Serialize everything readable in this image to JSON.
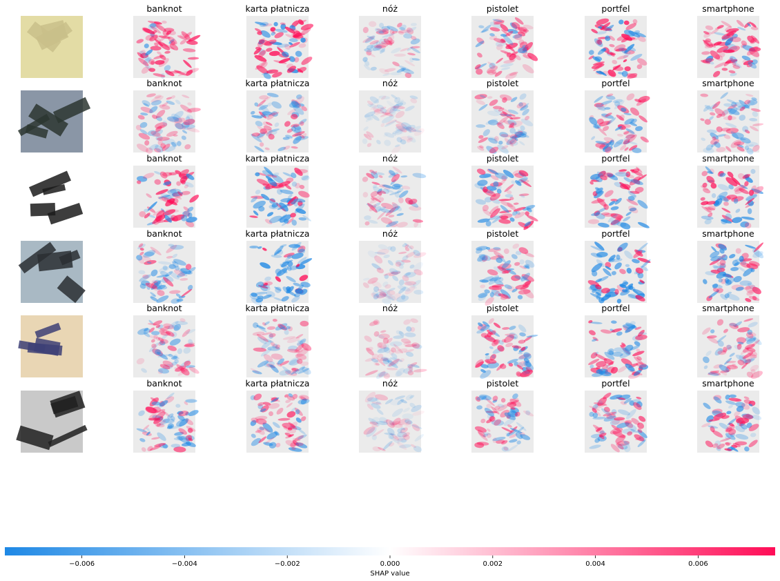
{
  "chart_data": {
    "type": "heatmap",
    "title": "",
    "rows": [
      {
        "input": "phone-back",
        "colors": {
          "base": "#e3dca5",
          "dark": "#c9c08a"
        }
      },
      {
        "input": "hand-knife",
        "colors": {
          "base": "#8a96a6",
          "dark": "#2c3630"
        }
      },
      {
        "input": "gun-black",
        "colors": {
          "base": "#ffffff",
          "dark": "#1b1b1b"
        }
      },
      {
        "input": "knife-blade",
        "colors": {
          "base": "#a9b9c4",
          "dark": "#2a2e33"
        }
      },
      {
        "input": "wallet-hand",
        "colors": {
          "base": "#e9d6b4",
          "dark": "#3d3f75"
        }
      },
      {
        "input": "gun-grayscale",
        "colors": {
          "base": "#c9c9c9",
          "dark": "#202020"
        }
      }
    ],
    "columns": [
      "banknot",
      "karta płatnicza",
      "nóż",
      "pistolet",
      "portfel",
      "smartphone"
    ],
    "colorbar": {
      "label": "SHAP value",
      "range": [
        -0.0075,
        0.0075
      ],
      "ticks": [
        -0.006,
        -0.004,
        -0.002,
        0.0,
        0.002,
        0.004,
        0.006
      ],
      "tick_labels": [
        "−0.006",
        "−0.004",
        "−0.002",
        "0.000",
        "0.002",
        "0.004",
        "0.006"
      ],
      "negative_color": "#1e88e5",
      "positive_color": "#ff0d57"
    },
    "intensity": [
      [
        0.9,
        1.0,
        0.45,
        0.8,
        1.0,
        1.0
      ],
      [
        0.55,
        0.7,
        0.25,
        0.6,
        0.75,
        0.6
      ],
      [
        0.9,
        0.95,
        0.6,
        0.85,
        0.9,
        0.95
      ],
      [
        0.7,
        1.0,
        0.3,
        0.7,
        1.0,
        0.85
      ],
      [
        0.6,
        0.6,
        0.35,
        0.8,
        0.85,
        0.6
      ],
      [
        0.85,
        0.85,
        0.3,
        0.7,
        0.75,
        0.85
      ]
    ],
    "bias": [
      [
        0.55,
        0.55,
        0.0,
        0.3,
        0.5,
        0.55
      ],
      [
        0.2,
        -0.15,
        -0.05,
        -0.1,
        0.1,
        -0.1
      ],
      [
        0.2,
        -0.1,
        0.05,
        0.1,
        0.1,
        0.15
      ],
      [
        -0.45,
        -0.55,
        -0.2,
        -0.25,
        -0.5,
        -0.3
      ],
      [
        -0.1,
        0.0,
        0.15,
        0.0,
        -0.05,
        0.1
      ],
      [
        -0.1,
        -0.05,
        -0.05,
        0.05,
        -0.05,
        0.05
      ]
    ]
  }
}
